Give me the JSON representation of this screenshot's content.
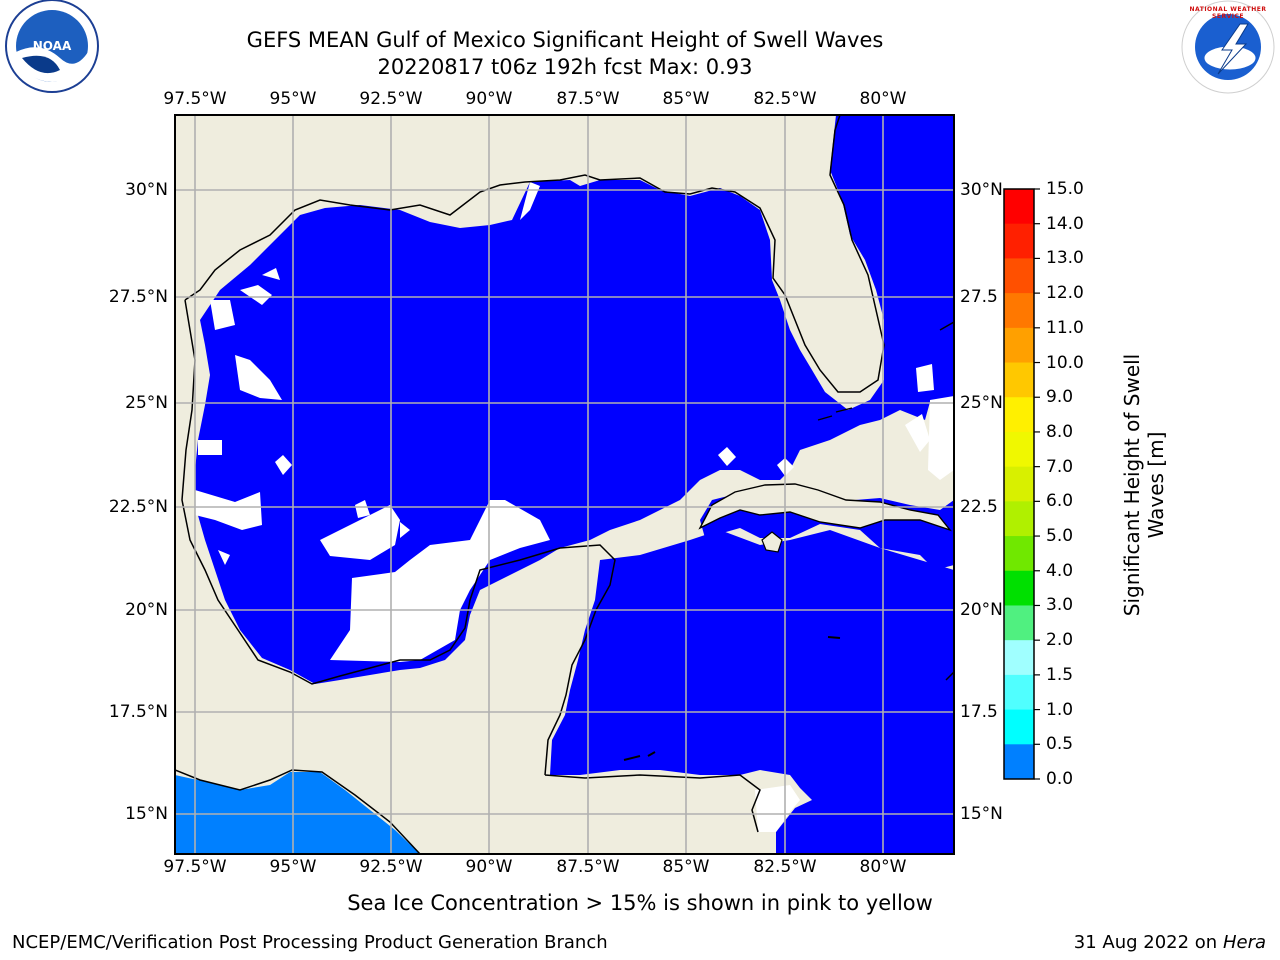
{
  "header": {
    "title_line1": "GEFS MEAN Gulf of Mexico Significant Height of Swell Waves",
    "title_line2": "20220817 t06z 192h fcst   Max: 0.93"
  },
  "logos": {
    "left": "NOAA",
    "right": "NATIONAL WEATHER SERVICE"
  },
  "map": {
    "lon_labels": [
      "97.5°W",
      "95°W",
      "92.5°W",
      "90°W",
      "87.5°W",
      "85°W",
      "82.5°W",
      "80°W"
    ],
    "lat_labels_left": [
      "30°N",
      "27.5°N",
      "25°N",
      "22.5°N",
      "20°N",
      "17.5°N",
      "15°N"
    ],
    "lat_labels_right": [
      "30°N",
      "27.5",
      "25°N",
      "22.5",
      "20°N",
      "17.5",
      "15°N"
    ],
    "colors": {
      "land": "#efedde",
      "ocean_low": "#0000ff",
      "ocean_mid": "#0080ff",
      "grid": "#b0b0b0",
      "nodata": "#ffffff"
    }
  },
  "colorbar": {
    "label": "Significant Height of Swell Waves [m]",
    "label_line1": "Significant Height of Swell",
    "label_line2": "Waves [m]",
    "ticks": [
      "15.0",
      "14.0",
      "13.0",
      "12.0",
      "11.0",
      "10.0",
      "9.0",
      "8.0",
      "7.0",
      "6.0",
      "5.0",
      "4.0",
      "3.0",
      "2.0",
      "1.5",
      "1.0",
      "0.5",
      "0.0"
    ],
    "colors": [
      "#ff0000",
      "#ff2000",
      "#ff5000",
      "#ff7800",
      "#ffa000",
      "#ffc800",
      "#fff000",
      "#f0f800",
      "#d8f000",
      "#b0f000",
      "#70e800",
      "#00e000",
      "#50f080",
      "#a0ffff",
      "#50ffff",
      "#00ffff",
      "#0080ff",
      "#0000ff"
    ]
  },
  "footer": {
    "note": "Sea Ice Concentration > 15% is shown in pink to yellow",
    "credit": "NCEP/EMC/Verification Post Processing Product Generation Branch",
    "date": "31 Aug 2022 on",
    "host": "Hera"
  }
}
